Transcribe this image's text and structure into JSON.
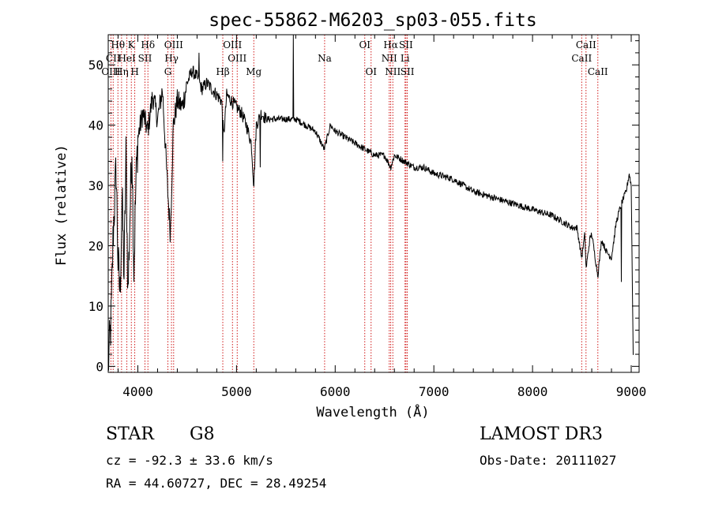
{
  "chart_data": {
    "type": "line",
    "title": "spec-55862-M6203_sp03-055.fits",
    "xlabel": "Wavelength (Å)",
    "ylabel": "Flux (relative)",
    "xlim": [
      3700,
      9080
    ],
    "ylim": [
      -1,
      55
    ],
    "x_ticks": [
      4000,
      5000,
      6000,
      7000,
      8000,
      9000
    ],
    "x_tick_labels": [
      "4000",
      "5000",
      "6000",
      "7000",
      "8000",
      "9000"
    ],
    "y_ticks": [
      0,
      10,
      20,
      30,
      40,
      50
    ],
    "y_tick_labels": [
      "0",
      "10",
      "20",
      "30",
      "40",
      "50"
    ],
    "spectrum_anchors": [
      [
        3700,
        0
      ],
      [
        3730,
        8
      ],
      [
        3750,
        22
      ],
      [
        3780,
        33
      ],
      [
        3800,
        17
      ],
      [
        3820,
        12
      ],
      [
        3840,
        28
      ],
      [
        3860,
        15
      ],
      [
        3880,
        35
      ],
      [
        3900,
        12
      ],
      [
        3920,
        25
      ],
      [
        3940,
        37
      ],
      [
        3960,
        16
      ],
      [
        3980,
        30
      ],
      [
        4000,
        38
      ],
      [
        4050,
        42
      ],
      [
        4100,
        39
      ],
      [
        4150,
        45
      ],
      [
        4200,
        41
      ],
      [
        4250,
        46
      ],
      [
        4300,
        30
      ],
      [
        4330,
        22
      ],
      [
        4360,
        40
      ],
      [
        4400,
        44
      ],
      [
        4450,
        43
      ],
      [
        4500,
        47
      ],
      [
        4550,
        49
      ],
      [
        4600,
        48
      ],
      [
        4650,
        46
      ],
      [
        4700,
        47
      ],
      [
        4750,
        46
      ],
      [
        4800,
        45
      ],
      [
        4850,
        44
      ],
      [
        4870,
        38
      ],
      [
        4900,
        45
      ],
      [
        4950,
        44
      ],
      [
        5000,
        43
      ],
      [
        5050,
        42
      ],
      [
        5100,
        40
      ],
      [
        5150,
        37
      ],
      [
        5175,
        30
      ],
      [
        5200,
        40
      ],
      [
        5250,
        42
      ],
      [
        5300,
        41
      ],
      [
        5400,
        41
      ],
      [
        5500,
        41
      ],
      [
        5600,
        41
      ],
      [
        5700,
        40
      ],
      [
        5800,
        39
      ],
      [
        5890,
        36
      ],
      [
        5950,
        40
      ],
      [
        6000,
        39
      ],
      [
        6100,
        38
      ],
      [
        6200,
        37
      ],
      [
        6300,
        36
      ],
      [
        6400,
        35
      ],
      [
        6500,
        35
      ],
      [
        6563,
        33
      ],
      [
        6600,
        35
      ],
      [
        6700,
        34
      ],
      [
        6800,
        33
      ],
      [
        6900,
        33
      ],
      [
        7000,
        32
      ],
      [
        7200,
        31
      ],
      [
        7400,
        29
      ],
      [
        7600,
        28
      ],
      [
        7800,
        27
      ],
      [
        8000,
        26
      ],
      [
        8200,
        25
      ],
      [
        8300,
        24
      ],
      [
        8400,
        23
      ],
      [
        8450,
        23
      ],
      [
        8498,
        18
      ],
      [
        8530,
        22
      ],
      [
        8542,
        16
      ],
      [
        8580,
        21
      ],
      [
        8600,
        22
      ],
      [
        8662,
        15
      ],
      [
        8700,
        21
      ],
      [
        8750,
        19
      ],
      [
        8800,
        18
      ],
      [
        8850,
        24
      ],
      [
        8900,
        27
      ],
      [
        8950,
        29
      ],
      [
        8980,
        32
      ],
      [
        9000,
        30
      ],
      [
        9020,
        2
      ]
    ],
    "spectrum_spikes": [
      [
        3790,
        44
      ],
      [
        3890,
        40
      ],
      [
        3970,
        10
      ],
      [
        4490,
        52
      ],
      [
        4570,
        53
      ],
      [
        4620,
        52
      ],
      [
        5577,
        55
      ],
      [
        5240,
        33
      ],
      [
        4860,
        34
      ],
      [
        8900,
        14
      ],
      [
        8750,
        13
      ]
    ],
    "emission_lines": [
      {
        "name": "Hθ",
        "wavelength": 3798,
        "label_row": 0
      },
      {
        "name": "CII",
        "wavelength": 3750,
        "label_row": 1
      },
      {
        "name": "OIII",
        "wavelength": 3727,
        "label_row": 2
      },
      {
        "name": "Hη",
        "wavelength": 3835,
        "label_row": 2
      },
      {
        "name": "K",
        "wavelength": 3934,
        "label_row": 0
      },
      {
        "name": "HeI",
        "wavelength": 3889,
        "label_row": 1
      },
      {
        "name": "SII",
        "wavelength": 4072,
        "label_row": 1
      },
      {
        "name": "H",
        "wavelength": 3969,
        "label_row": 2
      },
      {
        "name": "Hδ",
        "wavelength": 4102,
        "label_row": 0
      },
      {
        "name": "OIII",
        "wavelength": 4363,
        "label_row": 0
      },
      {
        "name": "Hγ",
        "wavelength": 4341,
        "label_row": 1
      },
      {
        "name": "G",
        "wavelength": 4305,
        "label_row": 2
      },
      {
        "name": "OIII",
        "wavelength": 4959,
        "label_row": 0
      },
      {
        "name": "OIII",
        "wavelength": 5007,
        "label_row": 1
      },
      {
        "name": "Hβ",
        "wavelength": 4861,
        "label_row": 2
      },
      {
        "name": "Mg",
        "wavelength": 5175,
        "label_row": 2
      },
      {
        "name": "Na",
        "wavelength": 5893,
        "label_row": 1
      },
      {
        "name": "OI",
        "wavelength": 6300,
        "label_row": 0
      },
      {
        "name": "OI",
        "wavelength": 6364,
        "label_row": 2
      },
      {
        "name": "Hα",
        "wavelength": 6563,
        "label_row": 0
      },
      {
        "name": "NII",
        "wavelength": 6548,
        "label_row": 1
      },
      {
        "name": "NII",
        "wavelength": 6584,
        "label_row": 2
      },
      {
        "name": "SII",
        "wavelength": 6717,
        "label_row": 0
      },
      {
        "name": "Li",
        "wavelength": 6708,
        "label_row": 1
      },
      {
        "name": "SII",
        "wavelength": 6731,
        "label_row": 2
      },
      {
        "name": "CaII",
        "wavelength": 8542,
        "label_row": 0
      },
      {
        "name": "CaII",
        "wavelength": 8498,
        "label_row": 1
      },
      {
        "name": "CaII",
        "wavelength": 8662,
        "label_row": 2
      }
    ],
    "line_color": "#000000",
    "marker_color": "#cc0000"
  },
  "info": {
    "class": "STAR",
    "subclass": "G8",
    "survey": "LAMOST DR3",
    "redshift": "cz = -92.3 ± 33.6 km/s",
    "obs_date": "Obs-Date: 20111027",
    "coords": "RA =  44.60727, DEC =  28.49254"
  }
}
